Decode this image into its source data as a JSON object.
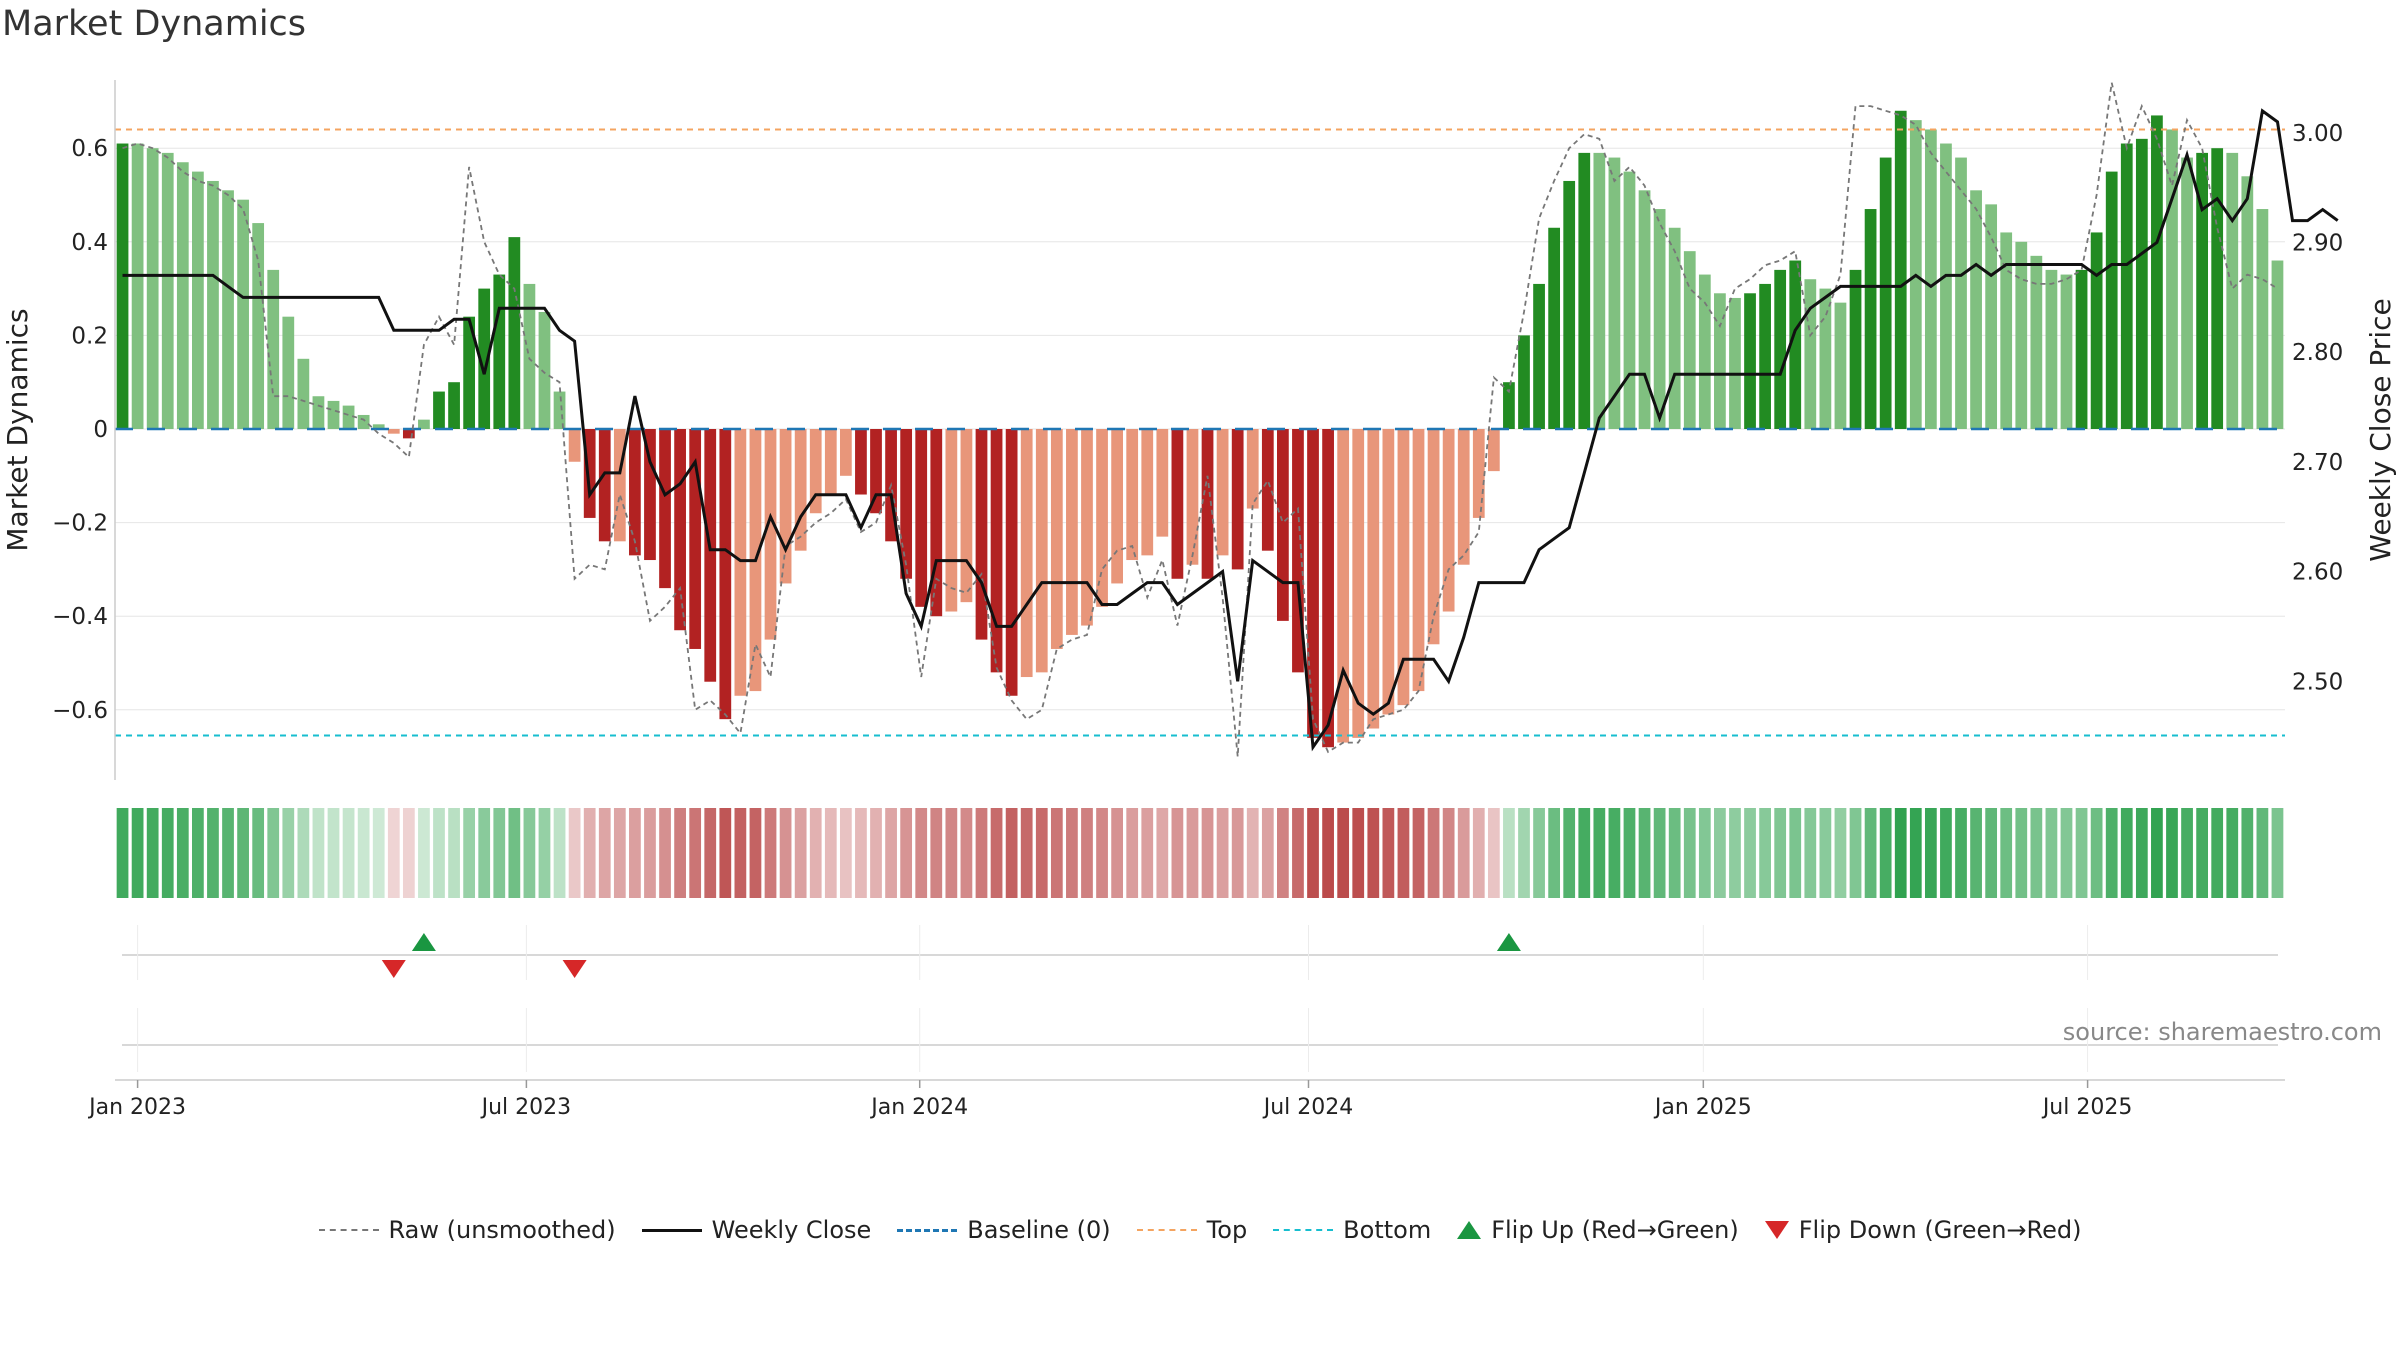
{
  "title": "Market Dynamics",
  "source": "source: sharemaestro.com",
  "legend": {
    "raw": "Raw (unsmoothed)",
    "close": "Weekly Close",
    "baseline": "Baseline (0)",
    "top": "Top",
    "bottom": "Bottom",
    "flip_up": "Flip Up (Red→Green)",
    "flip_down": "Flip Down (Green→Red)"
  },
  "colors": {
    "pos_strong": "#228b22",
    "pos_weak": "#80c080",
    "neg_strong": "#b22222",
    "neg_weak": "#e8967a",
    "raw": "#777777",
    "close": "#111111",
    "baseline": "#1f77b4",
    "top": "#f4a460",
    "bottom": "#17becf",
    "flip_up": "#1a9641",
    "flip_down": "#d62728"
  },
  "chart_data": {
    "type": "bar",
    "title": "Market Dynamics",
    "ylabel": "Market Dynamics",
    "y2label": "Weekly Close Price",
    "ylim": [
      -0.75,
      0.75
    ],
    "y2lim": [
      2.41,
      3.05
    ],
    "yticks": [
      0.6,
      0.4,
      0.2,
      0,
      -0.2,
      -0.4,
      -0.6
    ],
    "ytick_labels": [
      "0.6",
      "0.4",
      "0.2",
      "0",
      "−0.2",
      "−0.4",
      "−0.6"
    ],
    "y2ticks": [
      3.0,
      2.9,
      2.8,
      2.7,
      2.6,
      2.5
    ],
    "y2tick_labels": [
      "3.00",
      "2.90",
      "2.80",
      "2.70",
      "2.60",
      "2.50"
    ],
    "xticks": [
      "Jan 2023",
      "Jul 2023",
      "Jan 2024",
      "Jul 2024",
      "Jan 2025",
      "Jul 2025"
    ],
    "top_level": 0.64,
    "bottom_level": -0.655,
    "baseline": 0,
    "grid": true,
    "legend_position": "bottom",
    "series": [
      {
        "name": "Market Dynamics",
        "values": [
          0.61,
          0.61,
          0.6,
          0.59,
          0.57,
          0.55,
          0.53,
          0.51,
          0.49,
          0.44,
          0.34,
          0.24,
          0.15,
          0.07,
          0.06,
          0.05,
          0.03,
          0.01,
          -0.01,
          -0.02,
          0.02,
          0.08,
          0.1,
          0.24,
          0.3,
          0.33,
          0.41,
          0.31,
          0.25,
          0.08,
          -0.07,
          -0.19,
          -0.24,
          -0.24,
          -0.27,
          -0.28,
          -0.34,
          -0.43,
          -0.47,
          -0.54,
          -0.62,
          -0.57,
          -0.56,
          -0.45,
          -0.33,
          -0.26,
          -0.18,
          -0.14,
          -0.1,
          -0.14,
          -0.18,
          -0.24,
          -0.32,
          -0.38,
          -0.4,
          -0.39,
          -0.37,
          -0.45,
          -0.52,
          -0.57,
          -0.53,
          -0.52,
          -0.47,
          -0.44,
          -0.42,
          -0.38,
          -0.33,
          -0.28,
          -0.27,
          -0.23,
          -0.32,
          -0.29,
          -0.32,
          -0.27,
          -0.3,
          -0.17,
          -0.26,
          -0.41,
          -0.52,
          -0.66,
          -0.68,
          -0.67,
          -0.66,
          -0.64,
          -0.61,
          -0.59,
          -0.56,
          -0.46,
          -0.39,
          -0.29,
          -0.19,
          -0.09,
          0.1,
          0.2,
          0.31,
          0.43,
          0.53,
          0.59,
          0.59,
          0.58,
          0.55,
          0.51,
          0.47,
          0.43,
          0.38,
          0.33,
          0.29,
          0.28,
          0.29,
          0.31,
          0.34,
          0.36,
          0.32,
          0.3,
          0.27,
          0.34,
          0.47,
          0.58,
          0.68,
          0.66,
          0.64,
          0.61,
          0.58,
          0.51,
          0.48,
          0.42,
          0.4,
          0.37,
          0.34,
          0.33,
          0.34,
          0.42,
          0.55,
          0.61,
          0.62,
          0.67,
          0.64,
          0.58,
          0.59,
          0.6,
          0.59,
          0.54,
          0.47,
          0.36
        ]
      },
      {
        "name": "Weekly Close",
        "values": [
          2.87,
          2.87,
          2.87,
          2.87,
          2.87,
          2.87,
          2.87,
          2.86,
          2.85,
          2.85,
          2.85,
          2.85,
          2.85,
          2.85,
          2.85,
          2.85,
          2.85,
          2.85,
          2.82,
          2.82,
          2.82,
          2.82,
          2.83,
          2.83,
          2.78,
          2.84,
          2.84,
          2.84,
          2.84,
          2.82,
          2.81,
          2.67,
          2.69,
          2.69,
          2.76,
          2.7,
          2.67,
          2.68,
          2.7,
          2.62,
          2.62,
          2.61,
          2.61,
          2.65,
          2.62,
          2.65,
          2.67,
          2.67,
          2.67,
          2.64,
          2.67,
          2.67,
          2.58,
          2.55,
          2.61,
          2.61,
          2.61,
          2.59,
          2.55,
          2.55,
          2.57,
          2.59,
          2.59,
          2.59,
          2.59,
          2.57,
          2.57,
          2.58,
          2.59,
          2.59,
          2.57,
          2.58,
          2.59,
          2.6,
          2.5,
          2.61,
          2.6,
          2.59,
          2.59,
          2.44,
          2.46,
          2.51,
          2.48,
          2.47,
          2.48,
          2.52,
          2.52,
          2.52,
          2.5,
          2.54,
          2.59,
          2.59,
          2.59,
          2.59,
          2.62,
          2.63,
          2.64,
          2.69,
          2.74,
          2.76,
          2.78,
          2.78,
          2.74,
          2.78,
          2.78,
          2.78,
          2.78,
          2.78,
          2.78,
          2.78,
          2.78,
          2.82,
          2.84,
          2.85,
          2.86,
          2.86,
          2.86,
          2.86,
          2.86,
          2.87,
          2.86,
          2.87,
          2.87,
          2.88,
          2.87,
          2.88,
          2.88,
          2.88,
          2.88,
          2.88,
          2.88,
          2.87,
          2.88,
          2.88,
          2.89,
          2.9,
          2.94,
          2.98,
          2.93,
          2.94,
          2.92,
          2.94,
          3.02,
          3.01,
          2.92,
          2.92,
          2.93,
          2.92
        ]
      },
      {
        "name": "Raw (unsmoothed)",
        "values": [
          0.6,
          0.61,
          0.6,
          0.58,
          0.55,
          0.53,
          0.52,
          0.5,
          0.47,
          0.36,
          0.07,
          0.07,
          0.06,
          0.05,
          0.04,
          0.03,
          0.02,
          -0.01,
          -0.03,
          -0.06,
          0.18,
          0.24,
          0.18,
          0.56,
          0.4,
          0.33,
          0.3,
          0.15,
          0.12,
          0.1,
          -0.32,
          -0.29,
          -0.3,
          -0.14,
          -0.24,
          -0.41,
          -0.38,
          -0.34,
          -0.6,
          -0.58,
          -0.61,
          -0.65,
          -0.46,
          -0.53,
          -0.25,
          -0.23,
          -0.2,
          -0.18,
          -0.15,
          -0.22,
          -0.2,
          -0.12,
          -0.29,
          -0.53,
          -0.32,
          -0.34,
          -0.35,
          -0.31,
          -0.51,
          -0.58,
          -0.62,
          -0.6,
          -0.47,
          -0.45,
          -0.44,
          -0.3,
          -0.26,
          -0.25,
          -0.36,
          -0.28,
          -0.42,
          -0.27,
          -0.1,
          -0.36,
          -0.7,
          -0.16,
          -0.11,
          -0.2,
          -0.17,
          -0.62,
          -0.69,
          -0.67,
          -0.67,
          -0.62,
          -0.61,
          -0.6,
          -0.56,
          -0.4,
          -0.3,
          -0.27,
          -0.22,
          0.11,
          0.08,
          0.25,
          0.45,
          0.53,
          0.6,
          0.63,
          0.62,
          0.53,
          0.56,
          0.52,
          0.44,
          0.38,
          0.3,
          0.27,
          0.22,
          0.3,
          0.32,
          0.35,
          0.36,
          0.38,
          0.2,
          0.24,
          0.33,
          0.69,
          0.69,
          0.68,
          0.67,
          0.65,
          0.59,
          0.55,
          0.51,
          0.47,
          0.41,
          0.34,
          0.32,
          0.31,
          0.31,
          0.32,
          0.34,
          0.5,
          0.74,
          0.6,
          0.69,
          0.62,
          0.52,
          0.66,
          0.6,
          0.43,
          0.3,
          0.33,
          0.32,
          0.3
        ]
      }
    ],
    "regime_strip": [
      0.61,
      0.61,
      0.6,
      0.59,
      0.57,
      0.55,
      0.53,
      0.51,
      0.49,
      0.44,
      0.34,
      0.24,
      0.15,
      0.07,
      0.06,
      0.05,
      0.03,
      0.01,
      -0.01,
      -0.02,
      0.02,
      0.08,
      0.1,
      0.24,
      0.3,
      0.33,
      0.41,
      0.31,
      0.25,
      0.08,
      -0.07,
      -0.19,
      -0.24,
      -0.24,
      -0.27,
      -0.28,
      -0.34,
      -0.43,
      -0.47,
      -0.54,
      -0.62,
      -0.57,
      -0.56,
      -0.45,
      -0.33,
      -0.26,
      -0.18,
      -0.14,
      -0.1,
      -0.14,
      -0.18,
      -0.24,
      -0.32,
      -0.38,
      -0.4,
      -0.39,
      -0.37,
      -0.45,
      -0.52,
      -0.57,
      -0.53,
      -0.52,
      -0.47,
      -0.44,
      -0.42,
      -0.38,
      -0.33,
      -0.28,
      -0.27,
      -0.23,
      -0.32,
      -0.29,
      -0.32,
      -0.27,
      -0.3,
      -0.17,
      -0.26,
      -0.41,
      -0.52,
      -0.66,
      -0.68,
      -0.67,
      -0.66,
      -0.64,
      -0.61,
      -0.59,
      -0.56,
      -0.46,
      -0.39,
      -0.29,
      -0.19,
      -0.09,
      0.1,
      0.2,
      0.31,
      0.43,
      0.53,
      0.59,
      0.59,
      0.58,
      0.55,
      0.51,
      0.47,
      0.43,
      0.38,
      0.33,
      0.29,
      0.28,
      0.29,
      0.31,
      0.34,
      0.36,
      0.32,
      0.3,
      0.27,
      0.34,
      0.47,
      0.58,
      0.68,
      0.66,
      0.64,
      0.61,
      0.58,
      0.51,
      0.48,
      0.42,
      0.4,
      0.37,
      0.34,
      0.33,
      0.34,
      0.42,
      0.55,
      0.61,
      0.62,
      0.67,
      0.64,
      0.58,
      0.59,
      0.6,
      0.59,
      0.54,
      0.47,
      0.36
    ],
    "flips": [
      {
        "type": "up",
        "week": 20
      },
      {
        "type": "down",
        "week": 18
      },
      {
        "type": "down",
        "week": 30
      },
      {
        "type": "up",
        "week": 92
      }
    ]
  }
}
